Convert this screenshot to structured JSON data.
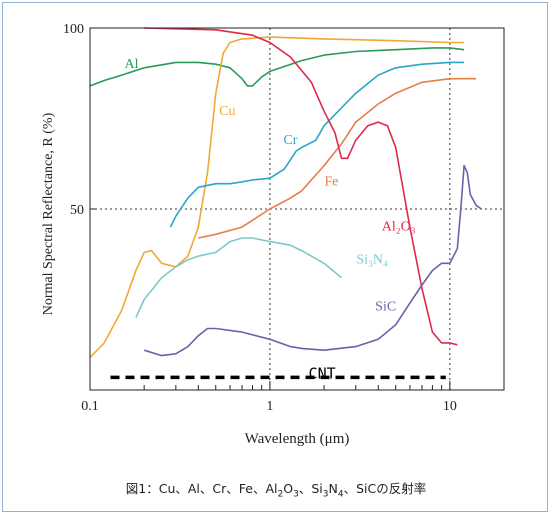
{
  "chart_data": {
    "type": "line",
    "title": "",
    "xlabel": "Wavelength (μm)",
    "ylabel": "Normal Spectral Reflectance, R (%)",
    "x_scale": "log",
    "xlim": [
      0.1,
      20
    ],
    "ylim": [
      0,
      100
    ],
    "x_ticks": [
      {
        "value": 0.1,
        "label": "0.1"
      },
      {
        "value": 1,
        "label": "1"
      },
      {
        "value": 10,
        "label": "10"
      }
    ],
    "y_ticks": [
      {
        "value": 50,
        "label": "50"
      },
      {
        "value": 100,
        "label": "100"
      }
    ],
    "grid": "dotted lines at x=1, x=10 and y=50",
    "legend": "none (labels placed next to curves)",
    "series": [
      {
        "name": "Al",
        "color": "#2a9a5a",
        "points": [
          [
            0.1,
            84
          ],
          [
            0.12,
            85.5
          ],
          [
            0.15,
            87
          ],
          [
            0.2,
            89
          ],
          [
            0.3,
            90.5
          ],
          [
            0.4,
            90.5
          ],
          [
            0.5,
            90
          ],
          [
            0.6,
            89
          ],
          [
            0.7,
            86
          ],
          [
            0.75,
            84
          ],
          [
            0.8,
            84
          ],
          [
            0.9,
            86.5
          ],
          [
            1,
            88
          ],
          [
            1.5,
            91
          ],
          [
            2,
            92.5
          ],
          [
            3,
            93.5
          ],
          [
            5,
            94
          ],
          [
            8,
            94.5
          ],
          [
            10,
            94.5
          ],
          [
            12,
            94
          ]
        ]
      },
      {
        "name": "Cu",
        "color": "#f0a835",
        "points": [
          [
            0.1,
            9
          ],
          [
            0.12,
            13
          ],
          [
            0.15,
            22
          ],
          [
            0.18,
            33
          ],
          [
            0.2,
            38
          ],
          [
            0.22,
            38.5
          ],
          [
            0.25,
            35
          ],
          [
            0.3,
            34
          ],
          [
            0.35,
            37
          ],
          [
            0.4,
            45
          ],
          [
            0.45,
            60
          ],
          [
            0.5,
            82
          ],
          [
            0.55,
            93
          ],
          [
            0.6,
            96
          ],
          [
            0.7,
            97
          ],
          [
            1,
            97.5
          ],
          [
            2,
            97
          ],
          [
            5,
            96.5
          ],
          [
            10,
            96
          ],
          [
            12,
            96
          ]
        ]
      },
      {
        "name": "Cr",
        "color": "#2aa5c8",
        "points": [
          [
            0.28,
            45
          ],
          [
            0.3,
            48
          ],
          [
            0.35,
            53
          ],
          [
            0.4,
            56
          ],
          [
            0.5,
            57
          ],
          [
            0.6,
            57
          ],
          [
            0.7,
            57.5
          ],
          [
            0.8,
            58
          ],
          [
            1,
            58.5
          ],
          [
            1.2,
            61
          ],
          [
            1.4,
            66
          ],
          [
            1.5,
            67
          ],
          [
            1.8,
            69
          ],
          [
            2,
            73
          ],
          [
            3,
            82
          ],
          [
            4,
            87
          ],
          [
            5,
            89
          ],
          [
            7,
            90
          ],
          [
            10,
            90.5
          ],
          [
            12,
            90.5
          ]
        ]
      },
      {
        "name": "Fe",
        "color": "#e87d45",
        "points": [
          [
            0.4,
            42
          ],
          [
            0.5,
            43
          ],
          [
            0.7,
            45
          ],
          [
            1,
            50
          ],
          [
            1.3,
            53
          ],
          [
            1.5,
            55
          ],
          [
            2,
            62
          ],
          [
            2.5,
            68
          ],
          [
            3,
            74
          ],
          [
            4,
            79
          ],
          [
            5,
            82
          ],
          [
            7,
            85
          ],
          [
            10,
            86
          ],
          [
            14,
            86
          ]
        ]
      },
      {
        "name": "Al₂O₃",
        "color": "#e0294a",
        "points": [
          [
            0.2,
            100
          ],
          [
            0.5,
            99.5
          ],
          [
            0.8,
            98
          ],
          [
            1,
            96
          ],
          [
            1.3,
            92
          ],
          [
            1.7,
            85
          ],
          [
            2,
            77
          ],
          [
            2.3,
            71
          ],
          [
            2.5,
            64
          ],
          [
            2.7,
            64
          ],
          [
            3,
            69
          ],
          [
            3.5,
            73
          ],
          [
            4,
            74
          ],
          [
            4.5,
            73
          ],
          [
            5,
            67
          ],
          [
            6,
            45
          ],
          [
            7,
            28
          ],
          [
            8,
            16
          ],
          [
            9,
            13
          ],
          [
            10,
            13
          ],
          [
            11,
            12.5
          ]
        ]
      },
      {
        "name": "Si₃N₄",
        "color": "#7ec8c8",
        "points": [
          [
            0.18,
            20
          ],
          [
            0.2,
            25
          ],
          [
            0.25,
            31
          ],
          [
            0.3,
            34
          ],
          [
            0.35,
            36
          ],
          [
            0.4,
            37
          ],
          [
            0.5,
            38
          ],
          [
            0.6,
            41
          ],
          [
            0.7,
            42
          ],
          [
            0.8,
            42
          ],
          [
            1,
            41
          ],
          [
            1.3,
            40
          ],
          [
            1.5,
            38.5
          ],
          [
            2,
            35
          ],
          [
            2.5,
            31
          ]
        ]
      },
      {
        "name": "SiC",
        "color": "#6a62a8",
        "points": [
          [
            0.2,
            11
          ],
          [
            0.25,
            9.5
          ],
          [
            0.3,
            10
          ],
          [
            0.35,
            12
          ],
          [
            0.4,
            15
          ],
          [
            0.45,
            17
          ],
          [
            0.5,
            17
          ],
          [
            0.7,
            16
          ],
          [
            1,
            14
          ],
          [
            1.3,
            12
          ],
          [
            1.5,
            11.5
          ],
          [
            2,
            11
          ],
          [
            3,
            12
          ],
          [
            4,
            14
          ],
          [
            5,
            18
          ],
          [
            6,
            24
          ],
          [
            7,
            29
          ],
          [
            8,
            33
          ],
          [
            9,
            35
          ],
          [
            10,
            35
          ],
          [
            11,
            39
          ],
          [
            11.5,
            50
          ],
          [
            12,
            62
          ],
          [
            12.5,
            60
          ],
          [
            13,
            54
          ],
          [
            14,
            51
          ],
          [
            15,
            50
          ]
        ]
      }
    ],
    "curve_labels": [
      {
        "text": "Al",
        "x": 0.17,
        "y": 89,
        "series": "Al"
      },
      {
        "text": "Cu",
        "x": 0.58,
        "y": 76,
        "series": "Cu"
      },
      {
        "text": "Cr",
        "x": 1.3,
        "y": 68,
        "series": "Cr"
      },
      {
        "text": "Fe",
        "x": 2.2,
        "y": 56.5,
        "series": "Fe"
      },
      {
        "text": "Al₂O₃",
        "x": 5.2,
        "y": 44,
        "series": "Al₂O₃"
      },
      {
        "text": "Si₃N₄",
        "x": 3.7,
        "y": 35,
        "series": "Si₃N₄"
      },
      {
        "text": "SiC",
        "x": 4.4,
        "y": 22,
        "series": "SiC"
      }
    ],
    "annotation": {
      "text": "CNT",
      "x_start": 0.13,
      "x_end": 9.5,
      "y": 3.5,
      "style": "thick dashed black line"
    }
  },
  "caption": {
    "parts": [
      {
        "t": "図1：Cu、Al、Cr、Fe、Al"
      },
      {
        "t": "2",
        "sub": true
      },
      {
        "t": "O"
      },
      {
        "t": "3",
        "sub": true
      },
      {
        "t": "、Si"
      },
      {
        "t": "3",
        "sub": true
      },
      {
        "t": "N"
      },
      {
        "t": "4",
        "sub": true
      },
      {
        "t": "、SiCの反射率"
      }
    ]
  }
}
